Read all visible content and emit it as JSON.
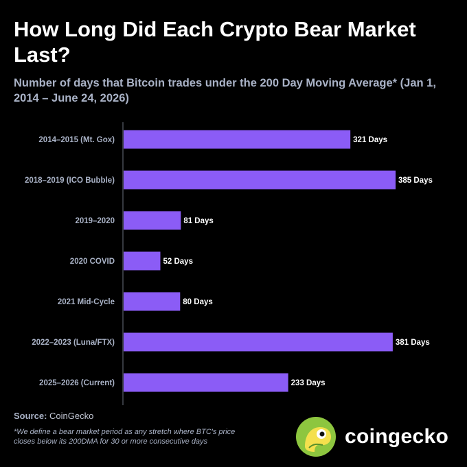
{
  "title": "How Long Did Each Crypto Bear Market Last?",
  "subtitle": "Number of days that Bitcoin trades under the 200 Day Moving Average* (Jan 1, 2014 – June 24, 2026)",
  "colors": {
    "bar": "#8b5cf6",
    "background": "#000000",
    "label": "#a9b2c6",
    "axis": "#6b7280"
  },
  "chart_data": {
    "type": "bar",
    "orientation": "horizontal",
    "categories": [
      "2014–2015 (Mt. Gox)",
      "2018–2019 (ICO Bubble)",
      "2019–2020",
      "2020 COVID",
      "2021 Mid-Cycle",
      "2022–2023 (Luna/FTX)",
      "2025–2026 (Current)"
    ],
    "values": [
      321,
      385,
      81,
      52,
      80,
      381,
      233
    ],
    "data_labels": [
      "321 Days",
      "385 Days",
      "81 Days",
      "52 Days",
      "80 Days",
      "381 Days",
      "233 Days"
    ],
    "unit": "Days",
    "xlim": [
      0,
      400
    ],
    "grid": false
  },
  "source": {
    "label": "Source:",
    "value": "CoinGecko"
  },
  "footnote": "*We define a bear market period as any stretch where BTC's price closes below its 200DMA for 30 or more consecutive days",
  "logo": {
    "text": "coingecko",
    "icon": "gecko-logo-icon"
  }
}
